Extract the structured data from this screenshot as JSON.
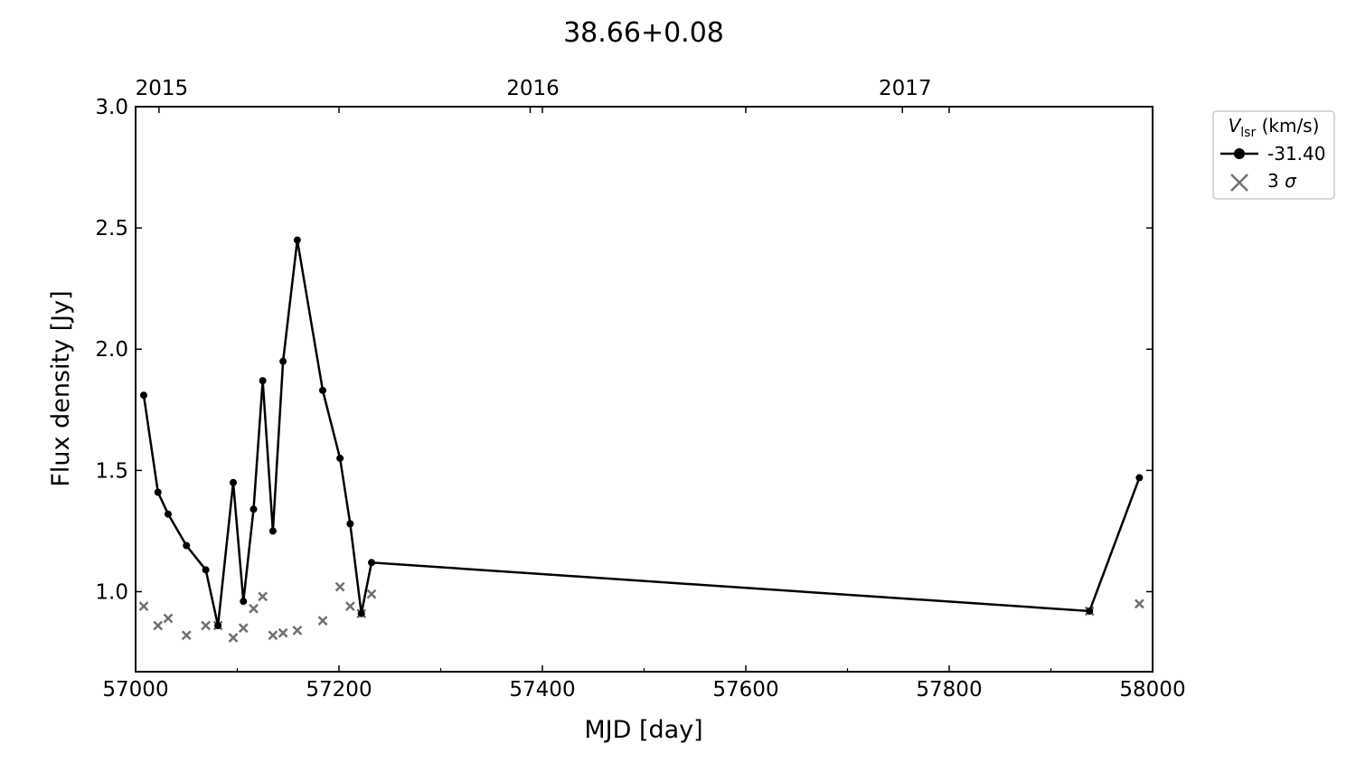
{
  "chart_data": {
    "type": "line",
    "title": "38.66+0.08",
    "xlabel": "MJD [day]",
    "ylabel": "Flux density [Jy]",
    "xlim": [
      57000,
      58000
    ],
    "ylim": [
      0.67,
      3.0
    ],
    "x_ticks": [
      57000,
      57200,
      57400,
      57600,
      57800,
      58000
    ],
    "x_tick_labels": [
      "57000",
      "57200",
      "57400",
      "57600",
      "57800",
      "58000"
    ],
    "y_ticks": [
      1.0,
      1.5,
      2.0,
      2.5,
      3.0
    ],
    "y_tick_labels": [
      "1.0",
      "1.5",
      "2.0",
      "2.5",
      "3.0"
    ],
    "top_axis": {
      "ticks": [
        57023,
        57388,
        57754
      ],
      "labels": [
        "2015",
        "2016",
        "2017"
      ]
    },
    "legend": {
      "title_main": "V",
      "title_sub": "lsr",
      "title_unit": " (km/s)",
      "placement": "outside-top-right",
      "entries": [
        {
          "label": "-31.40",
          "marker": "circle-line",
          "color": "#000000"
        },
        {
          "label_main": "3 ",
          "label_sym": "σ",
          "marker": "x",
          "color": "#707070"
        }
      ]
    },
    "series": [
      {
        "name": "-31.40",
        "color": "#000000",
        "x": [
          57008,
          57022,
          57032,
          57050,
          57069,
          57081,
          57096,
          57106,
          57116,
          57125,
          57135,
          57145,
          57159,
          57184,
          57201,
          57211,
          57222,
          57232,
          57938,
          57987
        ],
        "y": [
          1.81,
          1.41,
          1.32,
          1.19,
          1.09,
          0.86,
          1.45,
          0.96,
          1.34,
          1.87,
          1.25,
          1.95,
          2.45,
          1.83,
          1.55,
          1.28,
          0.91,
          1.12,
          0.92,
          1.47
        ]
      },
      {
        "name": "3 σ",
        "color": "#707070",
        "x": [
          57008,
          57022,
          57032,
          57050,
          57069,
          57081,
          57096,
          57106,
          57116,
          57125,
          57135,
          57145,
          57159,
          57184,
          57201,
          57211,
          57222,
          57232,
          57938,
          57987
        ],
        "y": [
          0.94,
          0.86,
          0.89,
          0.82,
          0.86,
          0.86,
          0.81,
          0.85,
          0.93,
          0.98,
          0.82,
          0.83,
          0.84,
          0.88,
          1.02,
          0.94,
          0.91,
          0.99,
          0.92,
          0.95
        ]
      }
    ]
  }
}
